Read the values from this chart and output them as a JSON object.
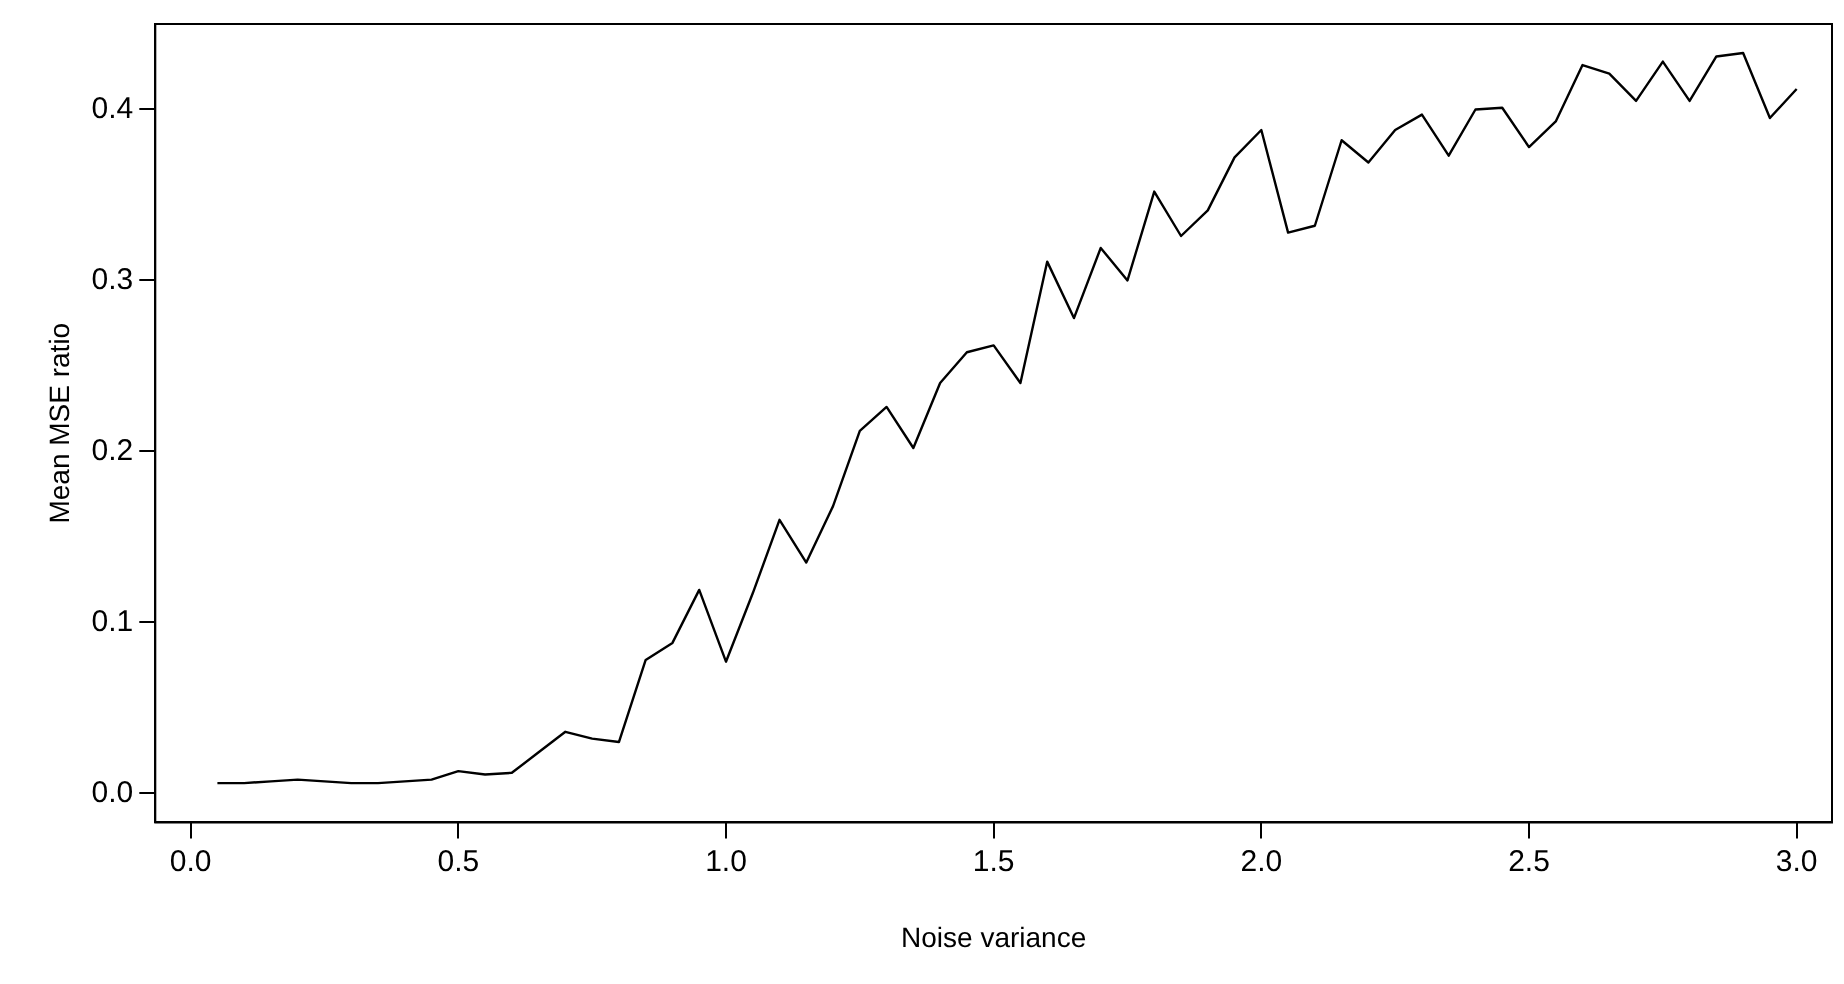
{
  "chart_data": {
    "type": "line",
    "xlabel": "Noise variance",
    "ylabel": "Mean MSE ratio",
    "x": [
      0.05,
      0.1,
      0.15,
      0.2,
      0.25,
      0.3,
      0.35,
      0.4,
      0.45,
      0.5,
      0.55,
      0.6,
      0.65,
      0.7,
      0.75,
      0.8,
      0.85,
      0.9,
      0.95,
      1.0,
      1.05,
      1.1,
      1.15,
      1.2,
      1.25,
      1.3,
      1.35,
      1.4,
      1.45,
      1.5,
      1.55,
      1.6,
      1.65,
      1.7,
      1.75,
      1.8,
      1.85,
      1.9,
      1.95,
      2.0,
      2.05,
      2.1,
      2.15,
      2.2,
      2.25,
      2.3,
      2.35,
      2.4,
      2.45,
      2.5,
      2.55,
      2.6,
      2.65,
      2.7,
      2.75,
      2.8,
      2.85,
      2.9,
      2.95,
      3.0
    ],
    "series": [
      {
        "color": "#000000",
        "values": [
          0.006,
          0.006,
          0.007,
          0.008,
          0.007,
          0.006,
          0.006,
          0.007,
          0.008,
          0.013,
          0.011,
          0.012,
          0.024,
          0.036,
          0.032,
          0.03,
          0.078,
          0.088,
          0.119,
          0.077,
          0.117,
          0.16,
          0.135,
          0.168,
          0.212,
          0.226,
          0.202,
          0.24,
          0.258,
          0.262,
          0.24,
          0.311,
          0.278,
          0.319,
          0.3,
          0.352,
          0.326,
          0.341,
          0.372,
          0.388,
          0.328,
          0.332,
          0.382,
          0.369,
          0.388,
          0.397,
          0.373,
          0.4,
          0.401,
          0.378,
          0.393,
          0.426,
          0.421,
          0.405,
          0.428,
          0.405,
          0.431,
          0.433,
          0.395,
          0.412
        ]
      }
    ],
    "xlim": [
      -0.066,
      3.066
    ],
    "xticks": [
      {
        "value": 0,
        "label": "0.0"
      },
      0.5,
      {
        "value": 1,
        "label": "1.0"
      },
      1.5,
      {
        "value": 2,
        "label": "2.0"
      },
      2.5,
      {
        "value": 3,
        "label": "3.0"
      }
    ],
    "ylim": [
      -0.017,
      0.45
    ],
    "yticks": [
      {
        "value": 0,
        "label": "0.0"
      },
      0.1,
      0.2,
      0.3,
      0.4
    ],
    "grid": false,
    "legend": false,
    "marker": "none",
    "line_style": "solid"
  }
}
